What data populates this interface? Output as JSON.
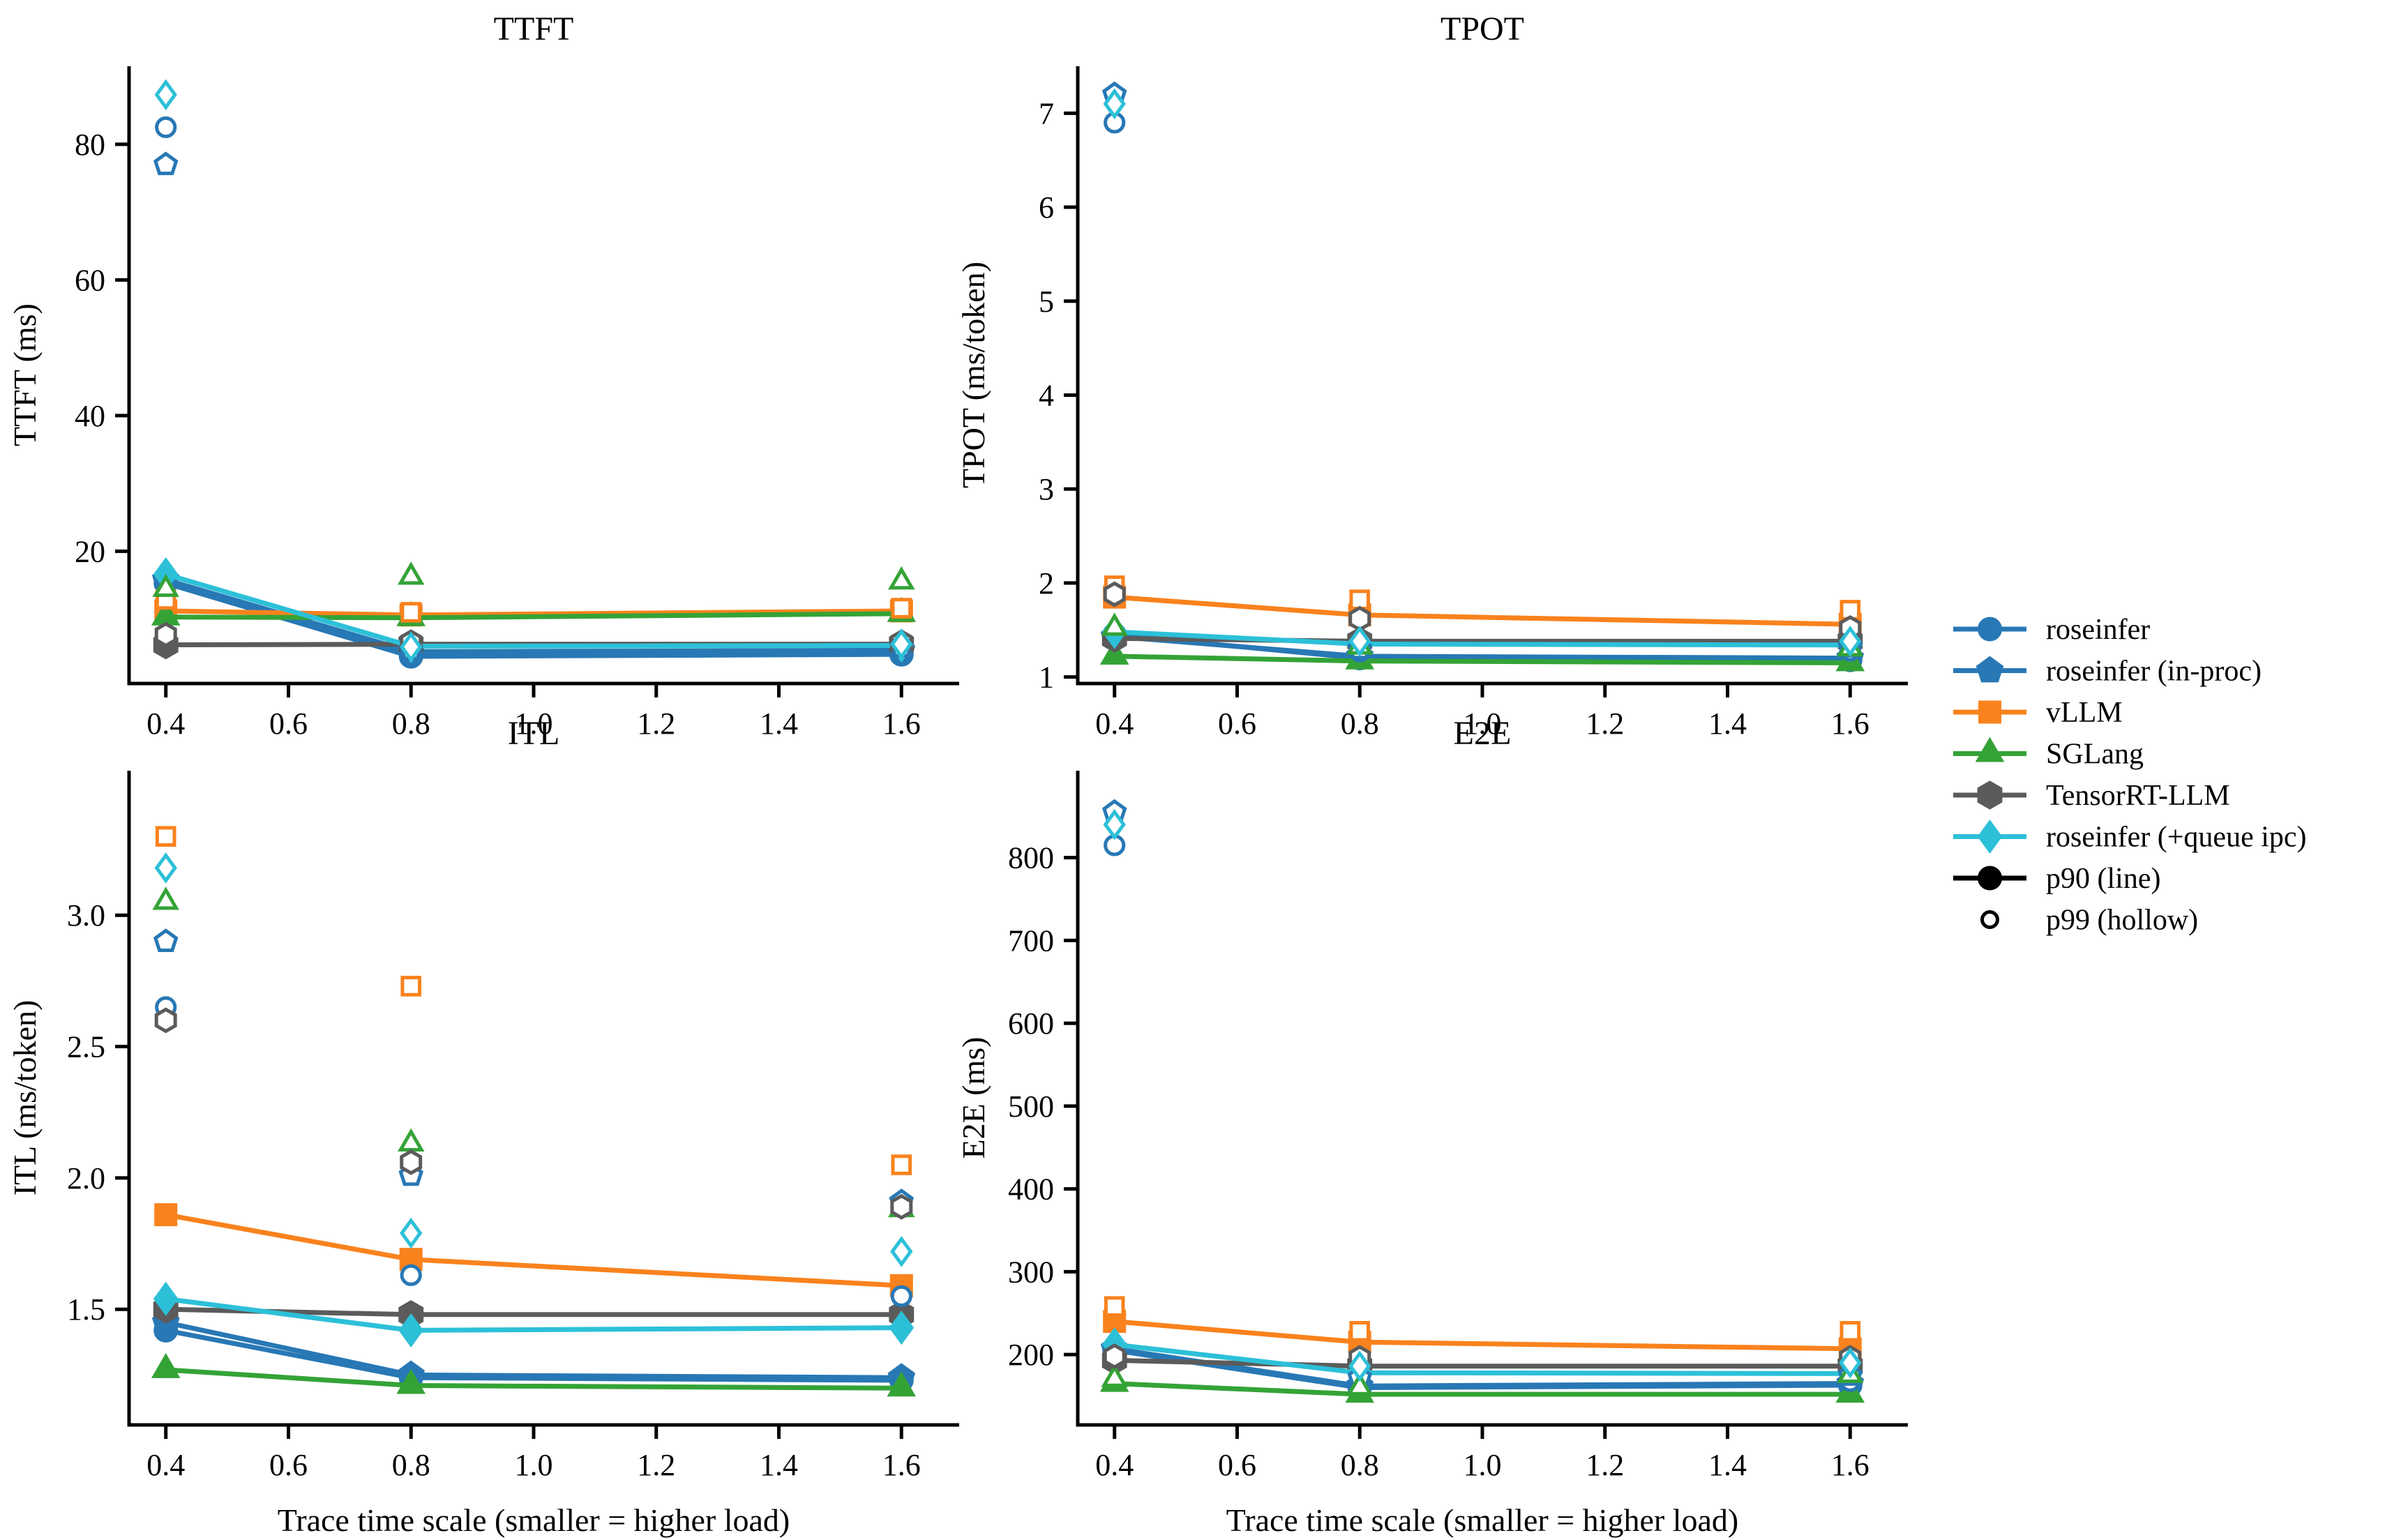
{
  "figure": {
    "background": "#ffffff"
  },
  "series": [
    {
      "name": "roseinfer",
      "color": "#2878b5",
      "marker": "circle"
    },
    {
      "name": "roseinfer (in-proc)",
      "color": "#2878b5",
      "marker": "pentagon"
    },
    {
      "name": "vLLM",
      "color": "#f9821d",
      "marker": "square"
    },
    {
      "name": "SGLang",
      "color": "#34a336",
      "marker": "triangle"
    },
    {
      "name": "TensorRT-LLM",
      "color": "#5b5b5b",
      "marker": "hexagon"
    },
    {
      "name": "roseinfer (+queue ipc)",
      "color": "#2cc0d8",
      "marker": "diamond"
    }
  ],
  "legend": {
    "items": [
      {
        "label": "roseinfer",
        "color": "#2878b5",
        "marker": "circle",
        "style": "line-marker"
      },
      {
        "label": "roseinfer (in-proc)",
        "color": "#2878b5",
        "marker": "pentagon",
        "style": "line-marker"
      },
      {
        "label": "vLLM",
        "color": "#f9821d",
        "marker": "square",
        "style": "line-marker"
      },
      {
        "label": "SGLang",
        "color": "#34a336",
        "marker": "triangle",
        "style": "line-marker"
      },
      {
        "label": "TensorRT-LLM",
        "color": "#5b5b5b",
        "marker": "hexagon",
        "style": "line-marker"
      },
      {
        "label": "roseinfer (+queue ipc)",
        "color": "#2cc0d8",
        "marker": "diamond",
        "style": "line-marker"
      },
      {
        "label": "p90 (line)",
        "color": "#000000",
        "marker": "circle",
        "style": "line-marker"
      },
      {
        "label": "p99 (hollow)",
        "color": "#000000",
        "marker": "circle",
        "style": "hollow"
      }
    ]
  },
  "chart_data": [
    {
      "id": "ttft",
      "type": "line",
      "title": "TTFT",
      "ylabel": "TTFT (ms)",
      "xlabel": "",
      "x": [
        0.4,
        0.8,
        1.6
      ],
      "xlim": [
        0.34,
        1.66
      ],
      "ylim": [
        0.5,
        91.5
      ],
      "xticks": [
        0.4,
        0.6,
        0.8,
        1.0,
        1.2,
        1.4,
        1.6
      ],
      "xtick_labels": [
        "0.4",
        "0.6",
        "0.8",
        "1.0",
        "1.2",
        "1.4",
        "1.6"
      ],
      "yticks": [
        20,
        40,
        60,
        80
      ],
      "ytick_labels": [
        "20",
        "40",
        "60",
        "80"
      ],
      "series": [
        {
          "name": "roseinfer",
          "p90": [
            15.3,
            4.5,
            4.8
          ],
          "p99": [
            82.5,
            5.6,
            6.1
          ]
        },
        {
          "name": "roseinfer (in-proc)",
          "p90": [
            15.8,
            5.2,
            5.4
          ],
          "p99": [
            77.0,
            5.5,
            5.9
          ]
        },
        {
          "name": "vLLM",
          "p90": [
            11.2,
            10.6,
            11.2
          ],
          "p99": [
            12.9,
            11.0,
            11.6
          ]
        },
        {
          "name": "SGLang",
          "p90": [
            10.3,
            10.2,
            10.8
          ],
          "p99": [
            14.4,
            16.2,
            15.5
          ]
        },
        {
          "name": "TensorRT-LLM",
          "p90": [
            6.2,
            6.3,
            6.3
          ],
          "p99": [
            7.7,
            6.6,
            6.6
          ]
        },
        {
          "name": "roseinfer (+queue ipc)",
          "p90": [
            16.6,
            6.0,
            6.1
          ],
          "p99": [
            87.3,
            5.9,
            6.3
          ]
        }
      ]
    },
    {
      "id": "tpot",
      "type": "line",
      "title": "TPOT",
      "ylabel": "TPOT (ms/token)",
      "xlabel": "",
      "x": [
        0.4,
        0.8,
        1.6
      ],
      "xlim": [
        0.34,
        1.66
      ],
      "ylim": [
        0.93,
        7.5
      ],
      "xticks": [
        0.4,
        0.6,
        0.8,
        1.0,
        1.2,
        1.4,
        1.6
      ],
      "xtick_labels": [
        "0.4",
        "0.6",
        "0.8",
        "1.0",
        "1.2",
        "1.4",
        "1.6"
      ],
      "yticks": [
        1,
        2,
        3,
        4,
        5,
        6,
        7
      ],
      "ytick_labels": [
        "1",
        "2",
        "3",
        "4",
        "5",
        "6",
        "7"
      ],
      "series": [
        {
          "name": "roseinfer",
          "p90": [
            1.45,
            1.2,
            1.18
          ],
          "p99": [
            6.9,
            1.27,
            1.28
          ]
        },
        {
          "name": "roseinfer (in-proc)",
          "p90": [
            1.43,
            1.22,
            1.2
          ],
          "p99": [
            7.2,
            1.3,
            1.32
          ]
        },
        {
          "name": "vLLM",
          "p90": [
            1.85,
            1.66,
            1.56
          ],
          "p99": [
            1.97,
            1.82,
            1.71
          ]
        },
        {
          "name": "SGLang",
          "p90": [
            1.22,
            1.17,
            1.15
          ],
          "p99": [
            1.52,
            1.32,
            1.3
          ]
        },
        {
          "name": "TensorRT-LLM",
          "p90": [
            1.41,
            1.38,
            1.38
          ],
          "p99": [
            1.88,
            1.62,
            1.52
          ]
        },
        {
          "name": "roseinfer (+queue ipc)",
          "p90": [
            1.48,
            1.35,
            1.34
          ],
          "p99": [
            7.1,
            1.38,
            1.38
          ]
        }
      ]
    },
    {
      "id": "itl",
      "type": "line",
      "title": "ITL",
      "ylabel": "ITL (ms/token)",
      "xlabel": "Trace time scale (smaller = higher load)",
      "x": [
        0.4,
        0.8,
        1.6
      ],
      "xlim": [
        0.34,
        1.66
      ],
      "ylim": [
        1.06,
        3.55
      ],
      "xticks": [
        0.4,
        0.6,
        0.8,
        1.0,
        1.2,
        1.4,
        1.6
      ],
      "xtick_labels": [
        "0.4",
        "0.6",
        "0.8",
        "1.0",
        "1.2",
        "1.4",
        "1.6"
      ],
      "yticks": [
        1.5,
        2.0,
        2.5,
        3.0
      ],
      "ytick_labels": [
        "1.5",
        "2.0",
        "2.5",
        "3.0"
      ],
      "series": [
        {
          "name": "roseinfer",
          "p90": [
            1.42,
            1.24,
            1.23
          ],
          "p99": [
            2.65,
            1.63,
            1.55
          ]
        },
        {
          "name": "roseinfer (in-proc)",
          "p90": [
            1.45,
            1.25,
            1.24
          ],
          "p99": [
            2.9,
            2.01,
            1.91
          ]
        },
        {
          "name": "vLLM",
          "p90": [
            1.86,
            1.69,
            1.59
          ],
          "p99": [
            3.3,
            2.73,
            2.05
          ]
        },
        {
          "name": "SGLang",
          "p90": [
            1.27,
            1.21,
            1.2
          ],
          "p99": [
            3.05,
            2.13,
            1.88
          ]
        },
        {
          "name": "TensorRT-LLM",
          "p90": [
            1.5,
            1.48,
            1.48
          ],
          "p99": [
            2.6,
            2.06,
            1.89
          ]
        },
        {
          "name": "roseinfer (+queue ipc)",
          "p90": [
            1.54,
            1.42,
            1.43
          ],
          "p99": [
            3.18,
            1.79,
            1.72
          ]
        }
      ]
    },
    {
      "id": "e2e",
      "type": "line",
      "title": "E2E",
      "ylabel": "E2E (ms)",
      "xlabel": "Trace time scale (smaller = higher load)",
      "x": [
        0.4,
        0.8,
        1.6
      ],
      "xlim": [
        0.34,
        1.66
      ],
      "ylim": [
        115,
        905
      ],
      "xticks": [
        0.4,
        0.6,
        0.8,
        1.0,
        1.2,
        1.4,
        1.6
      ],
      "xtick_labels": [
        "0.4",
        "0.6",
        "0.8",
        "1.0",
        "1.2",
        "1.4",
        "1.6"
      ],
      "yticks": [
        200,
        300,
        400,
        500,
        600,
        700,
        800
      ],
      "ytick_labels": [
        "200",
        "300",
        "400",
        "500",
        "600",
        "700",
        "800"
      ],
      "series": [
        {
          "name": "roseinfer",
          "p90": [
            205,
            160,
            163
          ],
          "p99": [
            815,
            168,
            168
          ]
        },
        {
          "name": "roseinfer (in-proc)",
          "p90": [
            207,
            162,
            165
          ],
          "p99": [
            855,
            172,
            175
          ]
        },
        {
          "name": "vLLM",
          "p90": [
            240,
            215,
            207
          ],
          "p99": [
            258,
            228,
            228
          ]
        },
        {
          "name": "SGLang",
          "p90": [
            165,
            152,
            152
          ],
          "p99": [
            170,
            160,
            175
          ]
        },
        {
          "name": "TensorRT-LLM",
          "p90": [
            193,
            186,
            186
          ],
          "p99": [
            198,
            196,
            196
          ]
        },
        {
          "name": "roseinfer (+queue ipc)",
          "p90": [
            212,
            178,
            177
          ],
          "p99": [
            840,
            186,
            190
          ]
        }
      ]
    }
  ]
}
